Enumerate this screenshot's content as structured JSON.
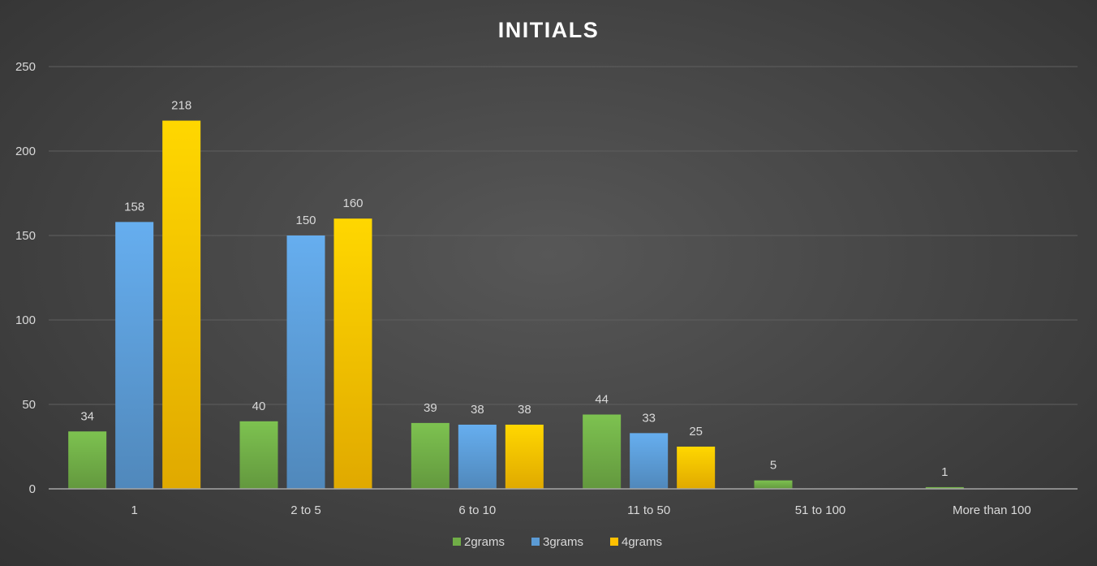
{
  "chart_data": {
    "type": "bar",
    "title": "INITIALS",
    "categories": [
      "1",
      "2 to 5",
      "6 to 10",
      "11 to 50",
      "51 to 100",
      "More than 100"
    ],
    "series": [
      {
        "name": "2grams",
        "values": [
          34,
          40,
          39,
          44,
          5,
          1
        ],
        "color": "#70ad47"
      },
      {
        "name": "3grams",
        "values": [
          158,
          150,
          38,
          33,
          0,
          0
        ],
        "color": "#5b9bd5"
      },
      {
        "name": "4grams",
        "values": [
          218,
          160,
          38,
          25,
          0,
          0
        ],
        "color": "#ffc000"
      }
    ],
    "yticks": [
      0,
      50,
      100,
      150,
      200,
      250
    ],
    "ylim": [
      0,
      250
    ],
    "grid": true,
    "legend_position": "bottom",
    "data_labels": true
  }
}
